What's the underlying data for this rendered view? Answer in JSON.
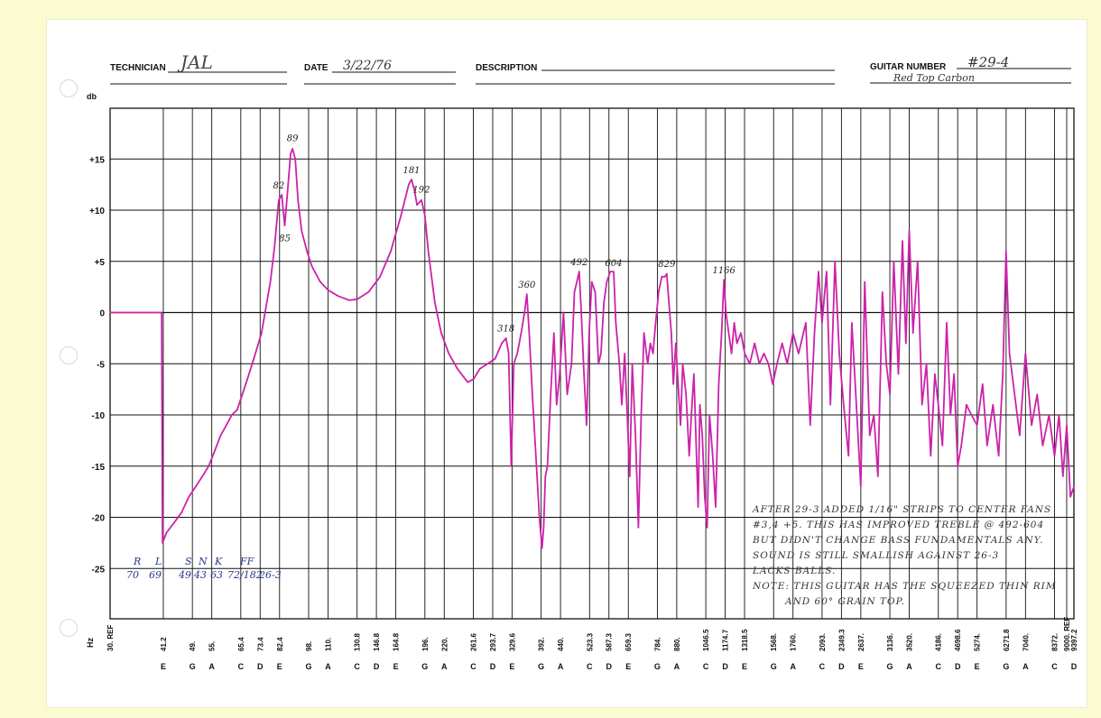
{
  "header": {
    "technician_label": "TECHNICIAN",
    "technician_value": "JAL",
    "date_label": "DATE",
    "date_value": "3/22/76",
    "description_label": "DESCRIPTION",
    "description_value": "",
    "guitar_number_label": "GUITAR NUMBER",
    "guitar_number_value": "#29-4",
    "guitar_note": "Red Top Carbon"
  },
  "colors": {
    "paper": "#ffffff",
    "border": "#fbfbd2",
    "grid": "#111111",
    "trace": "#cc22aa",
    "pen": "#2a3a8a",
    "pencil": "#333333"
  },
  "chart_data": {
    "type": "line",
    "title": "",
    "ylabel": "db",
    "xlabel": "Hz",
    "x_scale": "log",
    "grid": true,
    "y_ticks": [
      15,
      10,
      5,
      0,
      -5,
      -10,
      -15,
      -20,
      -25
    ],
    "y_tick_labels": [
      "+15",
      "+10",
      "+5",
      "0",
      "-5",
      "-10",
      "-15",
      "-20",
      "-25"
    ],
    "ylim": [
      -30.5,
      20
    ],
    "x_ticks": [
      {
        "hz": "30. REF",
        "note": ""
      },
      {
        "hz": "41.2",
        "note": "E"
      },
      {
        "hz": "49.",
        "note": "G"
      },
      {
        "hz": "55.",
        "note": "A"
      },
      {
        "hz": "65.4",
        "note": "C"
      },
      {
        "hz": "73.4",
        "note": "D"
      },
      {
        "hz": "82.4",
        "note": "E"
      },
      {
        "hz": "98.",
        "note": "G"
      },
      {
        "hz": "110.",
        "note": "A"
      },
      {
        "hz": "130.8",
        "note": "C"
      },
      {
        "hz": "146.8",
        "note": "D"
      },
      {
        "hz": "164.8",
        "note": "E"
      },
      {
        "hz": "196.",
        "note": "G"
      },
      {
        "hz": "220.",
        "note": "A"
      },
      {
        "hz": "261.6",
        "note": "C"
      },
      {
        "hz": "293.7",
        "note": "D"
      },
      {
        "hz": "329.6",
        "note": "E"
      },
      {
        "hz": "392.",
        "note": "G"
      },
      {
        "hz": "440.",
        "note": "A"
      },
      {
        "hz": "523.3",
        "note": "C"
      },
      {
        "hz": "587.3",
        "note": "D"
      },
      {
        "hz": "659.3",
        "note": "E"
      },
      {
        "hz": "784.",
        "note": "G"
      },
      {
        "hz": "880.",
        "note": "A"
      },
      {
        "hz": "1046.5",
        "note": "C"
      },
      {
        "hz": "1174.7",
        "note": "D"
      },
      {
        "hz": "1318.5",
        "note": "E"
      },
      {
        "hz": "1568.",
        "note": "G"
      },
      {
        "hz": "1760.",
        "note": "A"
      },
      {
        "hz": "2093.",
        "note": "C"
      },
      {
        "hz": "2349.3",
        "note": "D"
      },
      {
        "hz": "2637.",
        "note": "E"
      },
      {
        "hz": "3136.",
        "note": "G"
      },
      {
        "hz": "3520.",
        "note": "A"
      },
      {
        "hz": "4186.",
        "note": "C"
      },
      {
        "hz": "4698.6",
        "note": "D"
      },
      {
        "hz": "5274.",
        "note": "E"
      },
      {
        "hz": "6271.8",
        "note": "G"
      },
      {
        "hz": "7040.",
        "note": "A"
      },
      {
        "hz": "8372.",
        "note": "C"
      },
      {
        "hz": "9000. REF",
        "note": ""
      },
      {
        "hz": "9397.2",
        "note": "D"
      }
    ],
    "series": [
      {
        "points": [
          [
            30,
            0
          ],
          [
            39,
            0
          ],
          [
            40.8,
            0
          ],
          [
            41,
            -22.5
          ],
          [
            42,
            -21.5
          ],
          [
            44,
            -20.5
          ],
          [
            46,
            -19.5
          ],
          [
            48,
            -18
          ],
          [
            50,
            -17
          ],
          [
            52,
            -16
          ],
          [
            54,
            -15
          ],
          [
            56,
            -13.5
          ],
          [
            58,
            -12
          ],
          [
            60,
            -11
          ],
          [
            62,
            -10
          ],
          [
            64,
            -9.5
          ],
          [
            66,
            -8
          ],
          [
            68,
            -6.5
          ],
          [
            70,
            -5
          ],
          [
            72,
            -3.5
          ],
          [
            74,
            -2
          ],
          [
            76,
            0.5
          ],
          [
            78,
            3
          ],
          [
            80,
            6.5
          ],
          [
            82,
            11
          ],
          [
            83.5,
            11.5
          ],
          [
            85,
            8.5
          ],
          [
            86.5,
            12
          ],
          [
            88,
            15.5
          ],
          [
            89,
            16
          ],
          [
            90.5,
            15
          ],
          [
            92,
            11
          ],
          [
            94,
            8
          ],
          [
            97,
            6
          ],
          [
            100,
            4.5
          ],
          [
            105,
            3
          ],
          [
            110,
            2.2
          ],
          [
            117,
            1.6
          ],
          [
            125,
            1.2
          ],
          [
            131,
            1.3
          ],
          [
            140,
            2
          ],
          [
            150,
            3.5
          ],
          [
            160,
            6
          ],
          [
            170,
            9.5
          ],
          [
            178,
            12.5
          ],
          [
            181,
            13
          ],
          [
            184,
            12
          ],
          [
            187,
            10.5
          ],
          [
            192,
            11
          ],
          [
            196,
            9.5
          ],
          [
            200,
            6
          ],
          [
            208,
            1
          ],
          [
            216,
            -2
          ],
          [
            226,
            -4
          ],
          [
            238,
            -5.5
          ],
          [
            253,
            -6.8
          ],
          [
            262,
            -6.5
          ],
          [
            272,
            -5.5
          ],
          [
            285,
            -5
          ],
          [
            298,
            -4.5
          ],
          [
            310,
            -3
          ],
          [
            318,
            -2.5
          ],
          [
            323,
            -4
          ],
          [
            328,
            -15
          ],
          [
            333,
            -5
          ],
          [
            340,
            -4
          ],
          [
            348,
            -2
          ],
          [
            355,
            0
          ],
          [
            360,
            1.8
          ],
          [
            365,
            -2
          ],
          [
            372,
            -8
          ],
          [
            380,
            -14
          ],
          [
            388,
            -20
          ],
          [
            394,
            -23
          ],
          [
            398,
            -21
          ],
          [
            402,
            -16
          ],
          [
            407,
            -15
          ],
          [
            415,
            -8
          ],
          [
            423,
            -2
          ],
          [
            430,
            -9
          ],
          [
            438,
            -6
          ],
          [
            448,
            0
          ],
          [
            458,
            -8
          ],
          [
            470,
            -5
          ],
          [
            478,
            2
          ],
          [
            485,
            3
          ],
          [
            492,
            4
          ],
          [
            498,
            0
          ],
          [
            506,
            -6
          ],
          [
            514,
            -11
          ],
          [
            522,
            -2
          ],
          [
            530,
            3
          ],
          [
            541,
            2
          ],
          [
            552,
            -5
          ],
          [
            560,
            -4
          ],
          [
            570,
            1
          ],
          [
            580,
            3
          ],
          [
            592,
            4
          ],
          [
            600,
            4
          ],
          [
            604,
            4
          ],
          [
            612,
            -1
          ],
          [
            625,
            -5
          ],
          [
            634,
            -9
          ],
          [
            645,
            -4
          ],
          [
            655,
            -10
          ],
          [
            665,
            -16
          ],
          [
            675,
            -5
          ],
          [
            688,
            -12
          ],
          [
            700,
            -21
          ],
          [
            712,
            -10
          ],
          [
            724,
            -2
          ],
          [
            740,
            -5
          ],
          [
            752,
            -3
          ],
          [
            764,
            -4
          ],
          [
            776,
            -1
          ],
          [
            790,
            2
          ],
          [
            805,
            3.5
          ],
          [
            820,
            3.5
          ],
          [
            829,
            3.8
          ],
          [
            840,
            1
          ],
          [
            852,
            -2
          ],
          [
            862,
            -7
          ],
          [
            875,
            -3
          ],
          [
            887,
            -7
          ],
          [
            900,
            -11
          ],
          [
            912,
            -5
          ],
          [
            930,
            -8
          ],
          [
            948,
            -14
          ],
          [
            960,
            -10
          ],
          [
            975,
            -6
          ],
          [
            990,
            -14
          ],
          [
            1000,
            -19
          ],
          [
            1010,
            -9
          ],
          [
            1025,
            -12
          ],
          [
            1040,
            -18
          ],
          [
            1055,
            -21
          ],
          [
            1070,
            -10
          ],
          [
            1090,
            -14
          ],
          [
            1110,
            -19
          ],
          [
            1130,
            -7
          ],
          [
            1150,
            -2
          ],
          [
            1166,
            3.2
          ],
          [
            1180,
            0
          ],
          [
            1200,
            -2
          ],
          [
            1220,
            -4
          ],
          [
            1240,
            -1
          ],
          [
            1260,
            -3
          ],
          [
            1290,
            -2
          ],
          [
            1320,
            -4
          ],
          [
            1360,
            -5
          ],
          [
            1400,
            -3
          ],
          [
            1440,
            -5
          ],
          [
            1480,
            -4
          ],
          [
            1520,
            -5
          ],
          [
            1560,
            -7
          ],
          [
            1600,
            -5
          ],
          [
            1650,
            -3
          ],
          [
            1700,
            -5
          ],
          [
            1760,
            -2
          ],
          [
            1820,
            -4
          ],
          [
            1900,
            -1
          ],
          [
            1950,
            -11
          ],
          [
            2000,
            -2
          ],
          [
            2050,
            4
          ],
          [
            2093,
            -1
          ],
          [
            2150,
            4
          ],
          [
            2200,
            -9
          ],
          [
            2260,
            5
          ],
          [
            2320,
            -4
          ],
          [
            2380,
            -9
          ],
          [
            2450,
            -14
          ],
          [
            2500,
            -1
          ],
          [
            2560,
            -8
          ],
          [
            2637,
            -17
          ],
          [
            2700,
            3
          ],
          [
            2780,
            -12
          ],
          [
            2850,
            -10
          ],
          [
            2920,
            -16
          ],
          [
            3000,
            2
          ],
          [
            3070,
            -5
          ],
          [
            3136,
            -8
          ],
          [
            3210,
            5
          ],
          [
            3300,
            -6
          ],
          [
            3380,
            7
          ],
          [
            3450,
            -3
          ],
          [
            3520,
            8
          ],
          [
            3600,
            -2
          ],
          [
            3700,
            5
          ],
          [
            3800,
            -9
          ],
          [
            3900,
            -5
          ],
          [
            4000,
            -14
          ],
          [
            4100,
            -6
          ],
          [
            4186,
            -9
          ],
          [
            4290,
            -13
          ],
          [
            4400,
            -1
          ],
          [
            4500,
            -10
          ],
          [
            4600,
            -6
          ],
          [
            4698,
            -15
          ],
          [
            4800,
            -13
          ],
          [
            4950,
            -9
          ],
          [
            5100,
            -10
          ],
          [
            5274,
            -11
          ],
          [
            5450,
            -7
          ],
          [
            5600,
            -13
          ],
          [
            5800,
            -9
          ],
          [
            6000,
            -14
          ],
          [
            6150,
            -6
          ],
          [
            6271,
            6
          ],
          [
            6400,
            -4
          ],
          [
            6600,
            -8
          ],
          [
            6800,
            -12
          ],
          [
            7040,
            -4
          ],
          [
            7300,
            -11
          ],
          [
            7550,
            -8
          ],
          [
            7800,
            -13
          ],
          [
            8100,
            -10
          ],
          [
            8372,
            -14
          ],
          [
            8600,
            -10
          ],
          [
            8800,
            -16
          ],
          [
            9000,
            -11
          ],
          [
            9200,
            -18
          ],
          [
            9397,
            -17
          ]
        ]
      }
    ],
    "annotations": [
      {
        "text": "82",
        "x": 82,
        "y": 11.6
      },
      {
        "text": "85",
        "x": 85,
        "y": 8.0
      },
      {
        "text": "89",
        "x": 89,
        "y": 16.2
      },
      {
        "text": "181",
        "x": 181,
        "y": 13.1
      },
      {
        "text": "192",
        "x": 192,
        "y": 11.2
      },
      {
        "text": "318",
        "x": 318,
        "y": -2.4
      },
      {
        "text": "360",
        "x": 360,
        "y": 1.9
      },
      {
        "text": "492",
        "x": 492,
        "y": 4.1
      },
      {
        "text": "604",
        "x": 604,
        "y": 4.0
      },
      {
        "text": "829",
        "x": 829,
        "y": 3.9
      },
      {
        "text": "1166",
        "x": 1166,
        "y": 3.3
      }
    ],
    "pen_notes": {
      "row1": [
        "R",
        "L",
        "S",
        "N",
        "K",
        "FF"
      ],
      "row2": [
        "70",
        "69",
        "49",
        "43",
        "63",
        "72/182",
        "26-3"
      ]
    },
    "pencil_note": [
      "AFTER 29-3 ADDED 1/16\" STRIPS TO CENTER FANS",
      "#3,4 +5. THIS HAS IMPROVED TREBLE @ 492-604",
      "BUT DIDN'T CHANGE BASS FUNDAMENTALS ANY.",
      "SOUND IS STILL SMALLISH AGAINST 26-3",
      "LACKS BALLS.",
      "NOTE: THIS GUITAR HAS THE SQUEEZED THIN RIM",
      "AND 60° GRAIN TOP."
    ]
  }
}
